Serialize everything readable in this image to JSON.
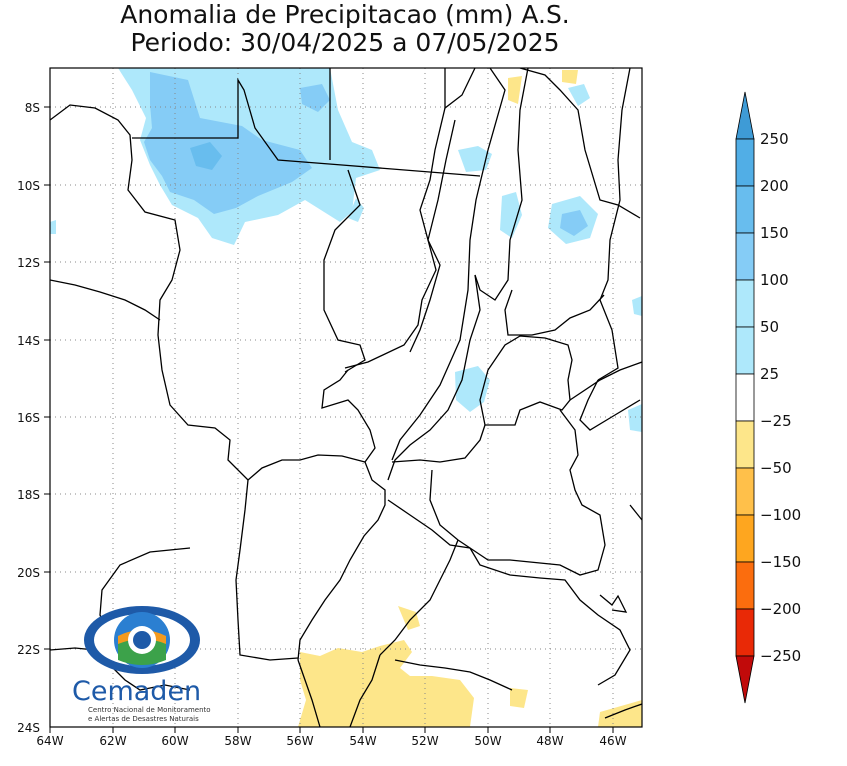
{
  "title": {
    "line1": "Anomalia de Precipitacao (mm) A.S.",
    "line2": "Periodo: 30/04/2025 a 07/05/2025"
  },
  "map": {
    "lat_labels": [
      "8S",
      "10S",
      "12S",
      "14S",
      "16S",
      "18S",
      "20S",
      "22S",
      "24S"
    ],
    "lon_labels": [
      "64W",
      "62W",
      "60W",
      "58W",
      "56W",
      "54W",
      "52W",
      "50W",
      "48W",
      "46W"
    ],
    "lon_range": [
      -64,
      -45
    ],
    "lat_range": [
      -24,
      -7.2
    ]
  },
  "colorbar": {
    "labels": [
      "250",
      "200",
      "150",
      "100",
      "50",
      "25",
      "−25",
      "−50",
      "−100",
      "−150",
      "−200",
      "−250"
    ],
    "colors": [
      "#3e9bd6",
      "#51aee6",
      "#68bdee",
      "#85ccf6",
      "#aee8fb",
      "#ffffff",
      "#fde68a",
      "#ffc04a",
      "#fea61f",
      "#fb6d0e",
      "#e92906",
      "#c10a0a"
    ]
  },
  "logo": {
    "name": "Cemaden",
    "subtitle1": "Centro Nacional de Monitoramento",
    "subtitle2": "e Alertas de Desastres Naturais"
  }
}
